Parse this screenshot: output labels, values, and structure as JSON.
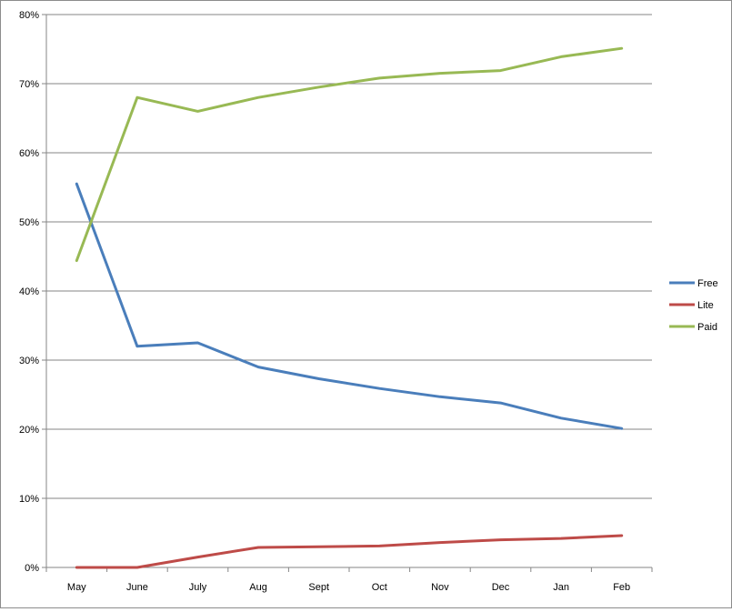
{
  "chart_data": {
    "type": "line",
    "title": "",
    "xlabel": "",
    "ylabel": "",
    "categories": [
      "May",
      "June",
      "July",
      "Aug",
      "Sept",
      "Oct",
      "Nov",
      "Dec",
      "Jan",
      "Feb"
    ],
    "ylim": [
      0,
      80
    ],
    "yticks": [
      0,
      10,
      20,
      30,
      40,
      50,
      60,
      70,
      80
    ],
    "ytick_labels": [
      "0%",
      "10%",
      "20%",
      "30%",
      "40%",
      "50%",
      "60%",
      "70%",
      "80%"
    ],
    "grid": true,
    "legend_position": "right",
    "series": [
      {
        "name": "Free",
        "color": "#4a7ebb",
        "values": [
          55.5,
          32.0,
          32.5,
          29.0,
          27.3,
          25.9,
          24.7,
          23.8,
          21.6,
          20.1
        ]
      },
      {
        "name": "Lite",
        "color": "#be4b48",
        "values": [
          0.0,
          0.0,
          1.5,
          2.9,
          3.0,
          3.1,
          3.6,
          4.0,
          4.2,
          4.6
        ]
      },
      {
        "name": "Paid",
        "color": "#98b954",
        "values": [
          44.4,
          68.0,
          66.0,
          68.0,
          69.5,
          70.8,
          71.5,
          71.9,
          73.9,
          75.1
        ]
      }
    ]
  }
}
